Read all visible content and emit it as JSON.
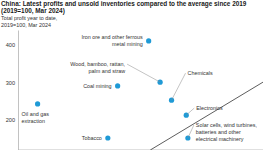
{
  "chart_data": {
    "type": "scatter",
    "title": "China: Latest profits and unsold inventories compared to the average since 2019 (2019=100, Mar 2024)",
    "y_label": "Total profit year to date, 2019=100, Mar 2024",
    "xlim": [
      50,
      200
    ],
    "ylim": [
      120,
      440
    ],
    "yticks": [
      200,
      300,
      400
    ],
    "grid": false,
    "tick_labels": "y",
    "series": [
      {
        "type": "scatter",
        "color": "#1f9ad6",
        "marker": "circle",
        "labels": [
          "Iron ore and other ferrous metal mining",
          "Wood, bamboo, rattan, palm and straw",
          "Chemicals",
          "Coal mining",
          "Electronics",
          "Oil and gas extraction",
          "Tobacco",
          "Solar cells, wind turbines, batteries and other electrical machinery"
        ],
        "x": [
          130,
          137,
          144,
          111,
          153,
          62,
          105,
          154
        ],
        "values": [
          411,
          301,
          253,
          291,
          213,
          243,
          152,
          152
        ]
      },
      {
        "type": "line",
        "color": "#333333",
        "line_style": "solid",
        "x": [
          131,
          200
        ],
        "values": [
          120,
          301
        ]
      }
    ]
  }
}
